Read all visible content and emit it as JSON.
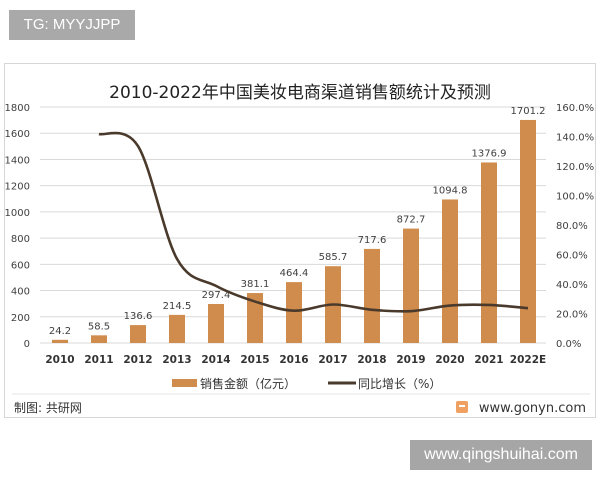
{
  "tag_label": "TG: MYYJJPP",
  "watermark": "www.qingshuihai.com",
  "footer": {
    "source": "制图: 共研网",
    "site": "www.gonyn.com",
    "logo_icon": "gonyn-logo-icon"
  },
  "colors": {
    "bar": "#d08c4c",
    "line": "#4a3a2c",
    "grid": "#d9d9d9",
    "text": "#404040"
  },
  "chart_data": {
    "type": "bar+line",
    "title": "2010-2022年中国美妆电商渠道销售额统计及预测",
    "categories": [
      "2010",
      "2011",
      "2012",
      "2013",
      "2014",
      "2015",
      "2016",
      "2017",
      "2018",
      "2019",
      "2020",
      "2021",
      "2022E"
    ],
    "series": [
      {
        "name": "销售金额（亿元）",
        "type": "bar",
        "axis": "left",
        "values": [
          24.2,
          58.5,
          136.6,
          214.5,
          297.4,
          381.1,
          464.4,
          585.7,
          717.6,
          872.7,
          1094.8,
          1376.9,
          1701.2
        ],
        "labels": [
          "24.2",
          "58.5",
          "136.6",
          "214.5",
          "297.4",
          "381.1",
          "464.4",
          "585.7",
          "717.6",
          "872.7",
          "1094.8",
          "1376.9",
          "1701.2"
        ]
      },
      {
        "name": "同比增长（%）",
        "type": "line",
        "axis": "right",
        "values": [
          null,
          141.7,
          133.5,
          57.0,
          38.7,
          28.1,
          21.9,
          26.1,
          22.5,
          21.6,
          25.4,
          25.8,
          23.6
        ]
      }
    ],
    "y_left": {
      "range": [
        0,
        1800
      ],
      "ticks": [
        "0",
        "200",
        "400",
        "600",
        "800",
        "1000",
        "1200",
        "1400",
        "1600",
        "1800"
      ]
    },
    "y_right": {
      "range": [
        0,
        160
      ],
      "ticks": [
        "0.0%",
        "20.0%",
        "40.0%",
        "60.0%",
        "80.0%",
        "100.0%",
        "120.0%",
        "140.0%",
        "160.0%"
      ]
    },
    "grid": true,
    "legend": "bottom"
  }
}
